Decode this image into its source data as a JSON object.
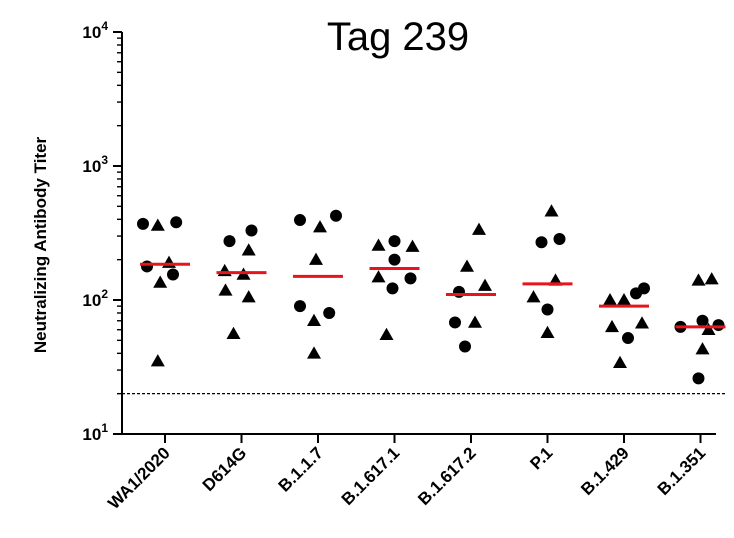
{
  "chart_data": {
    "type": "scatter",
    "title": "Tag 239",
    "ylabel": "Neutralizing Antibody Titer",
    "xlabel": "",
    "y_scale": "log",
    "ylim": [
      10,
      10000
    ],
    "y_ticks": [
      {
        "value": 10,
        "base": "10",
        "exp": "1"
      },
      {
        "value": 100,
        "base": "10",
        "exp": "2"
      },
      {
        "value": 1000,
        "base": "10",
        "exp": "3"
      },
      {
        "value": 10000,
        "base": "10",
        "exp": "4"
      }
    ],
    "limit_of_detection": 20,
    "categories": [
      "WA1/2020",
      "D614G",
      "B.1.1.7",
      "B.1.617.1",
      "B.1.617.2",
      "P.1",
      "B.1.429",
      "B.1.351"
    ],
    "median": [
      185,
      160,
      150,
      172,
      110,
      132,
      90,
      63
    ],
    "groups": [
      {
        "category": "WA1/2020",
        "points": [
          {
            "offset": -0.55,
            "value": 370,
            "marker": "circle"
          },
          {
            "offset": -0.18,
            "value": 360,
            "marker": "triangle"
          },
          {
            "offset": 0.28,
            "value": 380,
            "marker": "circle"
          },
          {
            "offset": -0.45,
            "value": 178,
            "marker": "circle"
          },
          {
            "offset": 0.1,
            "value": 190,
            "marker": "triangle"
          },
          {
            "offset": -0.12,
            "value": 135,
            "marker": "triangle"
          },
          {
            "offset": 0.2,
            "value": 155,
            "marker": "circle"
          },
          {
            "offset": -0.18,
            "value": 35,
            "marker": "triangle"
          }
        ]
      },
      {
        "category": "D614G",
        "points": [
          {
            "offset": -0.3,
            "value": 275,
            "marker": "circle"
          },
          {
            "offset": 0.25,
            "value": 330,
            "marker": "circle"
          },
          {
            "offset": 0.18,
            "value": 235,
            "marker": "triangle"
          },
          {
            "offset": -0.42,
            "value": 165,
            "marker": "triangle"
          },
          {
            "offset": 0.05,
            "value": 155,
            "marker": "triangle"
          },
          {
            "offset": -0.4,
            "value": 118,
            "marker": "triangle"
          },
          {
            "offset": 0.18,
            "value": 105,
            "marker": "triangle"
          },
          {
            "offset": -0.2,
            "value": 56,
            "marker": "triangle"
          }
        ]
      },
      {
        "category": "B.1.1.7",
        "points": [
          {
            "offset": -0.45,
            "value": 395,
            "marker": "circle"
          },
          {
            "offset": 0.05,
            "value": 350,
            "marker": "triangle"
          },
          {
            "offset": 0.45,
            "value": 425,
            "marker": "circle"
          },
          {
            "offset": -0.05,
            "value": 200,
            "marker": "triangle"
          },
          {
            "offset": -0.45,
            "value": 90,
            "marker": "circle"
          },
          {
            "offset": 0.28,
            "value": 80,
            "marker": "circle"
          },
          {
            "offset": -0.1,
            "value": 70,
            "marker": "triangle"
          },
          {
            "offset": -0.1,
            "value": 40,
            "marker": "triangle"
          }
        ]
      },
      {
        "category": "B.1.617.1",
        "points": [
          {
            "offset": -0.4,
            "value": 255,
            "marker": "triangle"
          },
          {
            "offset": 0.0,
            "value": 275,
            "marker": "circle"
          },
          {
            "offset": 0.45,
            "value": 250,
            "marker": "triangle"
          },
          {
            "offset": -0.4,
            "value": 148,
            "marker": "triangle"
          },
          {
            "offset": 0.0,
            "value": 200,
            "marker": "circle"
          },
          {
            "offset": 0.4,
            "value": 145,
            "marker": "circle"
          },
          {
            "offset": -0.05,
            "value": 122,
            "marker": "circle"
          },
          {
            "offset": -0.2,
            "value": 55,
            "marker": "triangle"
          }
        ]
      },
      {
        "category": "B.1.617.2",
        "points": [
          {
            "offset": 0.2,
            "value": 335,
            "marker": "triangle"
          },
          {
            "offset": -0.1,
            "value": 178,
            "marker": "triangle"
          },
          {
            "offset": 0.35,
            "value": 128,
            "marker": "triangle"
          },
          {
            "offset": -0.3,
            "value": 115,
            "marker": "circle"
          },
          {
            "offset": -0.4,
            "value": 68,
            "marker": "circle"
          },
          {
            "offset": 0.1,
            "value": 68,
            "marker": "triangle"
          },
          {
            "offset": -0.15,
            "value": 45,
            "marker": "circle"
          }
        ]
      },
      {
        "category": "P.1",
        "points": [
          {
            "offset": 0.1,
            "value": 460,
            "marker": "triangle"
          },
          {
            "offset": -0.15,
            "value": 270,
            "marker": "circle"
          },
          {
            "offset": 0.3,
            "value": 285,
            "marker": "circle"
          },
          {
            "offset": 0.2,
            "value": 140,
            "marker": "triangle"
          },
          {
            "offset": -0.35,
            "value": 105,
            "marker": "triangle"
          },
          {
            "offset": 0.0,
            "value": 85,
            "marker": "circle"
          },
          {
            "offset": 0.0,
            "value": 57,
            "marker": "triangle"
          }
        ]
      },
      {
        "category": "B.1.429",
        "points": [
          {
            "offset": -0.35,
            "value": 100,
            "marker": "triangle"
          },
          {
            "offset": 0.0,
            "value": 100,
            "marker": "triangle"
          },
          {
            "offset": 0.3,
            "value": 112,
            "marker": "circle"
          },
          {
            "offset": 0.5,
            "value": 122,
            "marker": "circle"
          },
          {
            "offset": -0.3,
            "value": 63,
            "marker": "triangle"
          },
          {
            "offset": 0.45,
            "value": 67,
            "marker": "triangle"
          },
          {
            "offset": 0.1,
            "value": 52,
            "marker": "circle"
          },
          {
            "offset": -0.1,
            "value": 34,
            "marker": "triangle"
          }
        ]
      },
      {
        "category": "B.1.351",
        "points": [
          {
            "offset": -0.05,
            "value": 140,
            "marker": "triangle"
          },
          {
            "offset": 0.28,
            "value": 143,
            "marker": "triangle"
          },
          {
            "offset": -0.5,
            "value": 63,
            "marker": "circle"
          },
          {
            "offset": 0.05,
            "value": 70,
            "marker": "circle"
          },
          {
            "offset": 0.45,
            "value": 65,
            "marker": "circle"
          },
          {
            "offset": 0.2,
            "value": 60,
            "marker": "triangle"
          },
          {
            "offset": 0.05,
            "value": 43,
            "marker": "triangle"
          },
          {
            "offset": -0.05,
            "value": 26,
            "marker": "circle"
          }
        ]
      }
    ],
    "colors": {
      "points": "#000000",
      "median": "#e8141b",
      "axis": "#000000",
      "lod": "#000000"
    },
    "grid": false,
    "legend": "none"
  }
}
